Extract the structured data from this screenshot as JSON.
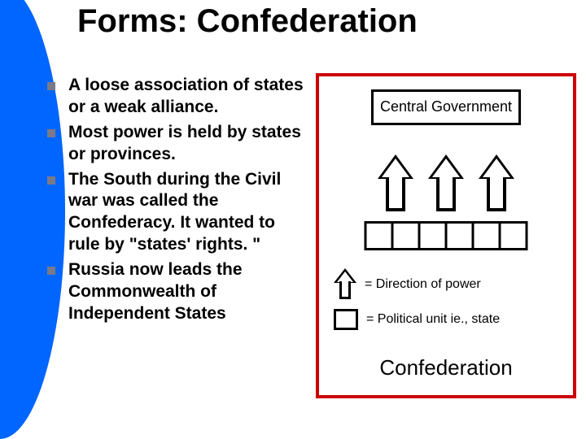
{
  "title": "Forms: Confederation",
  "bullets": [
    "A loose association of states or a weak alliance.",
    "Most power is held by states or provinces.",
    "The South during the Civil war was called the Confederacy. It wanted to rule by \"states' rights. \"",
    "Russia now leads the Commonwealth of Independent States"
  ],
  "diagram": {
    "central_label": "Central Government",
    "num_arrows": 3,
    "num_states": 6,
    "legend_arrow": "= Direction of power",
    "legend_box": "= Political unit ie., state",
    "caption": "Confederation",
    "border_color": "#cc0000",
    "bullet_color": "#7a7a8a",
    "accent_color": "#0066ff"
  }
}
